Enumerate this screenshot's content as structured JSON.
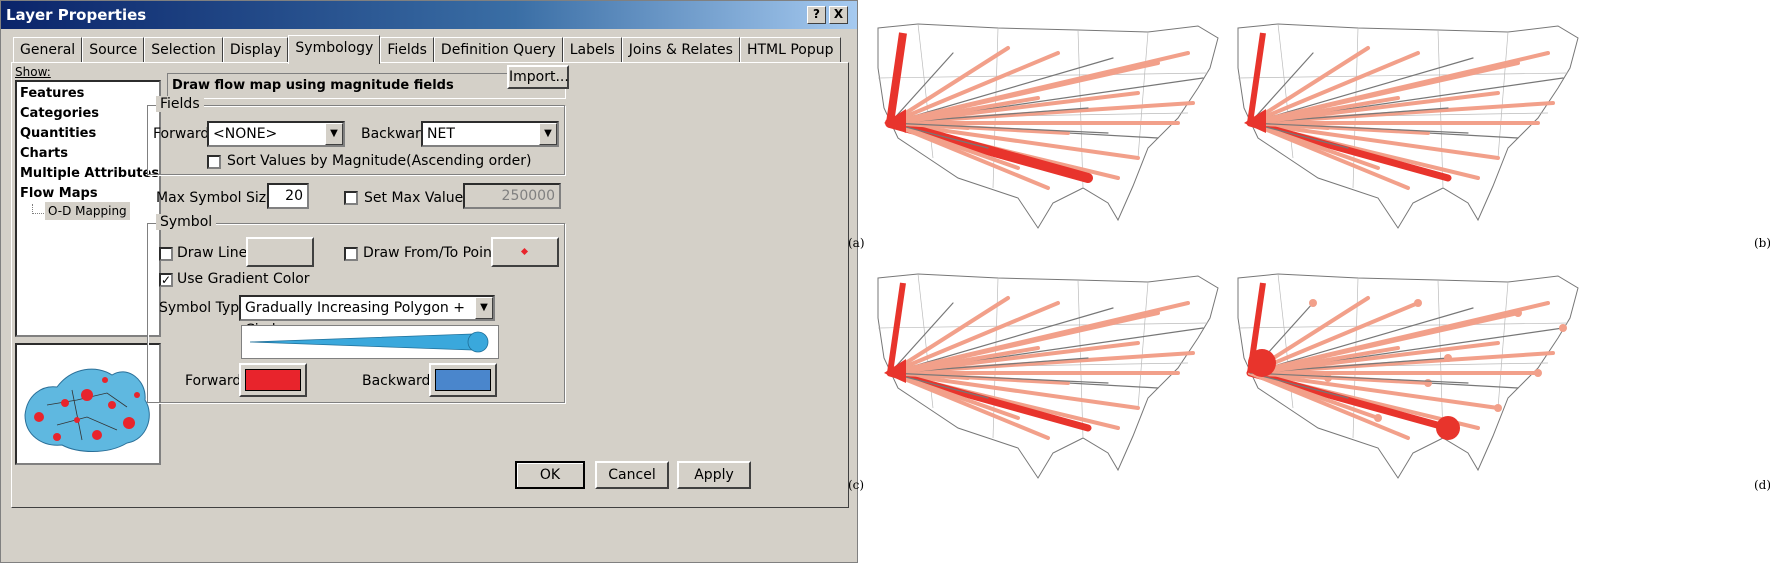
{
  "window": {
    "title": "Layer Properties",
    "help_btn": "?",
    "close_btn": "X"
  },
  "tabs": [
    {
      "label": "General"
    },
    {
      "label": "Source"
    },
    {
      "label": "Selection"
    },
    {
      "label": "Display"
    },
    {
      "label": "Symbology",
      "active": true
    },
    {
      "label": "Fields"
    },
    {
      "label": "Definition Query"
    },
    {
      "label": "Labels"
    },
    {
      "label": "Joins & Relates"
    },
    {
      "label": "HTML Popup"
    }
  ],
  "show": {
    "label": "Show:",
    "items": [
      "Features",
      "Categories",
      "Quantities",
      "Charts",
      "Multiple Attributes",
      "Flow Maps"
    ],
    "subitem": "O-D Mapping"
  },
  "description": "Draw flow map using magnitude fields",
  "import_button": "Import...",
  "fields": {
    "title": "Fields",
    "forward_label": "Forward:",
    "forward_value": "<NONE>",
    "backward_label": "Backward:",
    "backward_value": "NET",
    "sort_label": "Sort Values by Magnitude(Ascending order)"
  },
  "max_symbol": {
    "label": "Max Symbol Size:",
    "value": "20",
    "set_max_label": "Set Max Value:",
    "set_max_value": "250000"
  },
  "symbol": {
    "title": "Symbol",
    "draw_line_label": "Draw Line",
    "draw_points_label": "Draw From/To Points",
    "gradient_label": "Use Gradient Color",
    "gradient_checked": "✓",
    "type_label": "Symbol Type:",
    "type_value": "Gradually Increasing Polygon + Circle",
    "forward_label": "Forward:",
    "backward_label": "Backward:",
    "forward_color": "#e8242c",
    "backward_color": "#4a86cc",
    "preview_color": "#3aa8dc"
  },
  "footer": {
    "ok": "OK",
    "cancel": "Cancel",
    "apply": "Apply"
  },
  "figures": {
    "labels": [
      "(a)",
      "(b)",
      "(c)",
      "(d)"
    ],
    "flow_color_strong": "#e8342c",
    "flow_color_light": "#f2a08a"
  }
}
